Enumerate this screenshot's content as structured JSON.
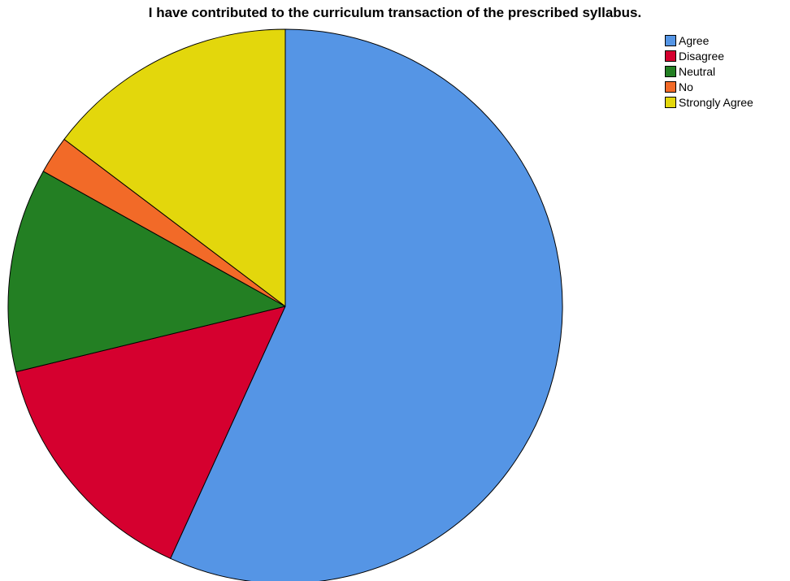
{
  "chart_data": {
    "type": "pie",
    "title": "I have contributed to the curriculum transaction of the prescribed syllabus.",
    "start_angle_deg": 0,
    "direction": "clockwise",
    "slices": [
      {
        "label": "Agree",
        "value": 56.8,
        "color": "#5595e5"
      },
      {
        "label": "Disagree",
        "value": 14.4,
        "color": "#d5002f"
      },
      {
        "label": "Neutral",
        "value": 11.9,
        "color": "#237f23"
      },
      {
        "label": "No",
        "value": 2.2,
        "color": "#f26a28"
      },
      {
        "label": "Strongly Agree",
        "value": 14.7,
        "color": "#e3d70c"
      }
    ],
    "legend_position": "top-right"
  }
}
